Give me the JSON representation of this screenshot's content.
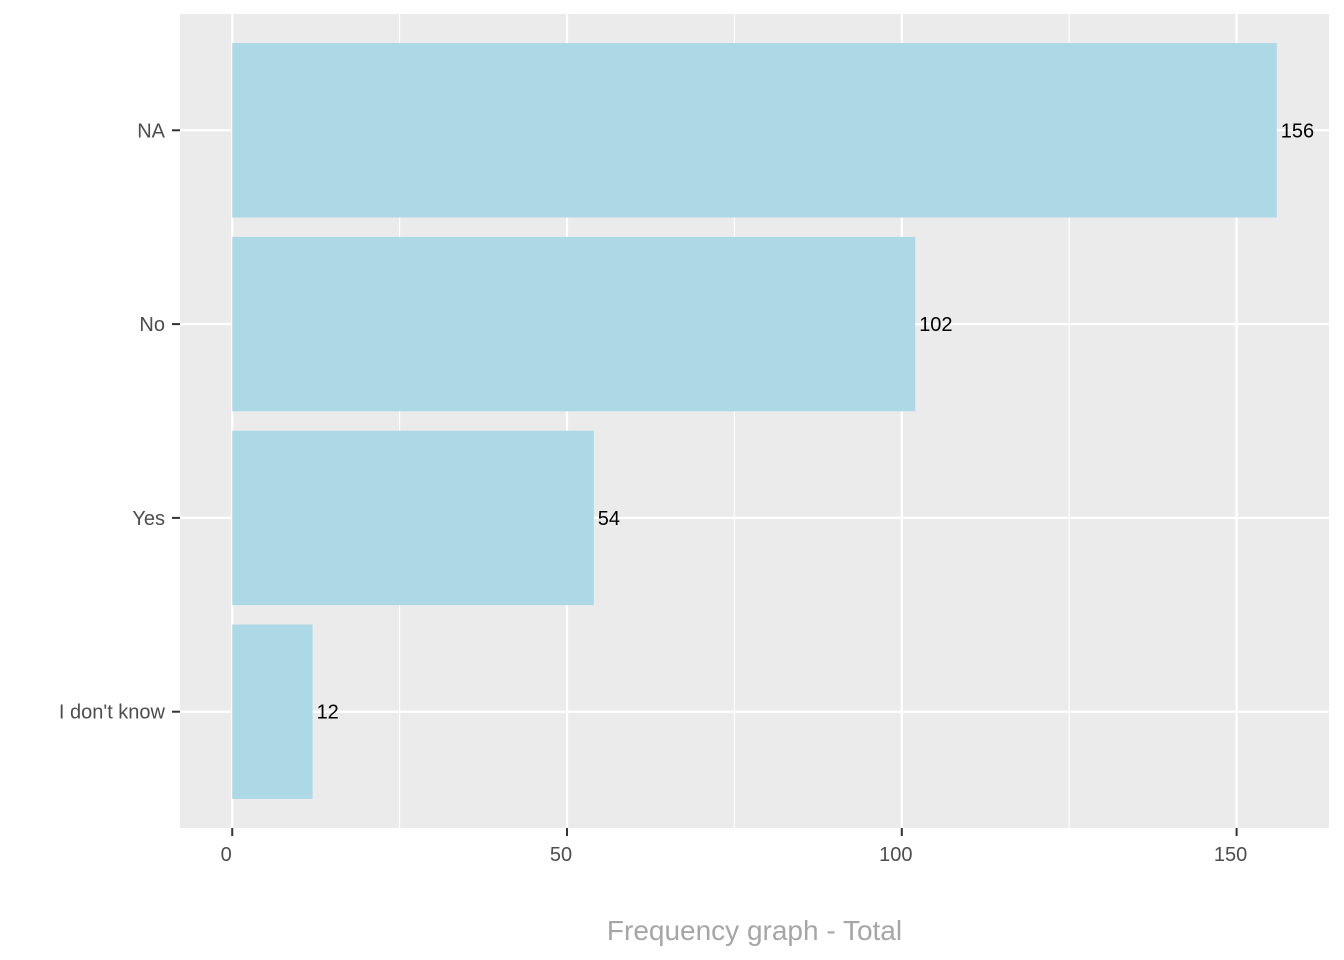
{
  "chart_data": {
    "type": "bar",
    "orientation": "horizontal",
    "categories": [
      "NA",
      "No",
      "Yes",
      "I don't know"
    ],
    "values": [
      156,
      102,
      54,
      12
    ],
    "xlabel": "Frequency graph - Total",
    "ylabel": "",
    "xlim": [
      -7.8,
      163.8
    ],
    "xticks": [
      0,
      50,
      100,
      150
    ],
    "grid": true,
    "legend": "none",
    "colors": {
      "bar": "#add8e6",
      "panel": "#ebebeb",
      "grid": "#ffffff",
      "tick_text": "#4d4d4d",
      "data_label": "#000000",
      "axis_title": "#a6a6a6"
    }
  }
}
